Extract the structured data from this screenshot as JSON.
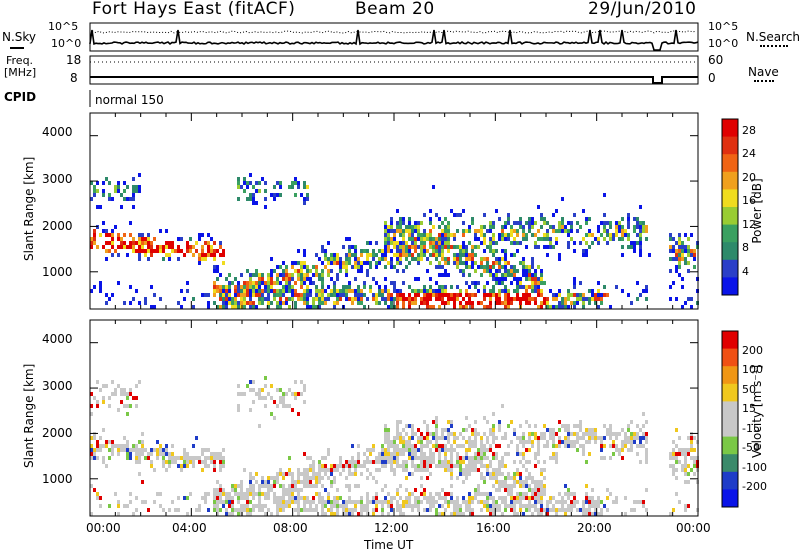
{
  "header": {
    "station": "Fort Hays East (fitACF)",
    "beam": "Beam 20",
    "date": "29/Jun/2010"
  },
  "top_panels": {
    "noise_left": "N.Sky",
    "noise_right": "N.Search",
    "noise_ticks_left": [
      "10^5",
      "10^0"
    ],
    "noise_ticks_right": [
      "10^5",
      "10^0"
    ],
    "freq_label_line1": "Freq.",
    "freq_label_line2": "[MHz]",
    "freq_ticks": [
      "18",
      "8"
    ],
    "nave_label": "Nave",
    "nave_ticks": [
      "60",
      "0"
    ],
    "cpid_label": "CPID",
    "cpid_value": "normal 150"
  },
  "colors": {
    "power_scale": [
      "#0a14e8",
      "#2a3fc8",
      "#2e8a6a",
      "#3aa060",
      "#99cc33",
      "#f0dc1e",
      "#f0a01e",
      "#f06414",
      "#e03010",
      "#e00000"
    ],
    "velocity_scale": [
      "#0a14e8",
      "#1e3cc8",
      "#3a8a6a",
      "#7ac846",
      "#c8c8c8",
      "#c8c8c8",
      "#f0c81e",
      "#f09614",
      "#f05014",
      "#e00000"
    ]
  },
  "chart_data": [
    {
      "type": "heatmap",
      "panel": "power",
      "ylabel": "Slant Range [km]",
      "yticks": [
        "1000",
        "2000",
        "3000",
        "4000"
      ],
      "ylim": [
        180,
        4500
      ],
      "xlabel": "Time UT",
      "xticks": [
        "00:00",
        "04:00",
        "08:00",
        "12:00",
        "16:00",
        "20:00",
        "00:00"
      ],
      "xlim_hours": [
        0,
        24
      ],
      "colorbar_label": "Power [dB]",
      "colorbar_ticks": [
        "4",
        "8",
        "12",
        "16",
        "20",
        "24",
        "28"
      ],
      "colorbar_range": [
        0,
        30
      ]
    },
    {
      "type": "heatmap",
      "panel": "velocity",
      "ylabel": "Slant Range [km]",
      "yticks": [
        "1000",
        "2000",
        "3000",
        "4000"
      ],
      "ylim": [
        180,
        4500
      ],
      "xlabel": "Time UT",
      "xticks": [
        "00:00",
        "04:00",
        "08:00",
        "12:00",
        "16:00",
        "20:00",
        "00:00"
      ],
      "xlim_hours": [
        0,
        24
      ],
      "colorbar_label": "Velocity [m s⁻¹]",
      "colorbar_ticks": [
        "200",
        "100",
        "50",
        "15",
        "-15",
        "-50",
        "-100",
        "-200"
      ],
      "colorbar_range": [
        -250,
        250
      ]
    }
  ]
}
